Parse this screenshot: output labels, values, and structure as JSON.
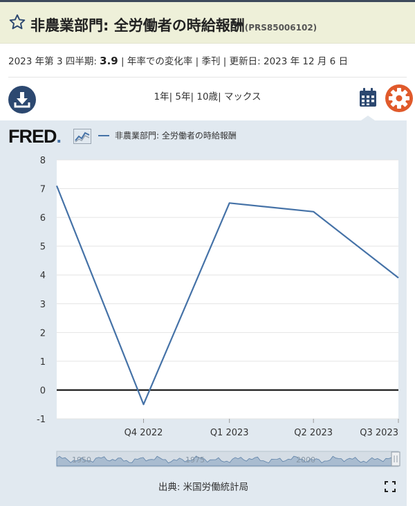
{
  "header": {
    "title": "非農業部門: 全労働者の時給報酬",
    "series_id": "(PRS85006102)"
  },
  "meta": {
    "period_label": "2023 年第 3 四半期:",
    "value": "3.9",
    "rest": "| 年率での変化率 | 季刊 | 更新日: 2023 年 12 月 6 日"
  },
  "toolbar": {
    "range_1y": "1年",
    "range_5y": "5年",
    "range_10y": "10歳",
    "range_max": "マックス",
    "sep": "|"
  },
  "chart_header": {
    "logo": "FRED",
    "logo_mark": "."
  },
  "chart_data": {
    "type": "line",
    "title": "",
    "xlabel": "",
    "ylabel": "",
    "series": [
      {
        "name": "非農業部門: 全労働者の時給報酬",
        "color": "#4572a7",
        "x": [
          "2022-06-30",
          "2022-10-01",
          "2023-01-01",
          "2023-04-01",
          "2023-07-01"
        ],
        "values": [
          7.1,
          -0.5,
          6.5,
          6.2,
          3.9
        ]
      }
    ],
    "x_ticks": [
      "Q4 2022",
      "Q1 2023",
      "Q2 2023",
      "Q3 2023"
    ],
    "ylim": [
      -1,
      8
    ],
    "y_ticks": [
      -1,
      0,
      1,
      2,
      3,
      4,
      5,
      6,
      7,
      8
    ],
    "grid": true,
    "zero_line": true,
    "navigator_labels": [
      "1950",
      "1975",
      "2000"
    ]
  },
  "source": "出典: 米国労働統計局",
  "colors": {
    "accent": "#2c4870",
    "gear": "#e05a2b",
    "series": "#4572a7",
    "panel": "#e1e9f0",
    "title_bg": "#eef0d9"
  },
  "icons": [
    "star-icon",
    "download-icon",
    "calendar-icon",
    "gear-icon",
    "fullscreen-icon"
  ]
}
